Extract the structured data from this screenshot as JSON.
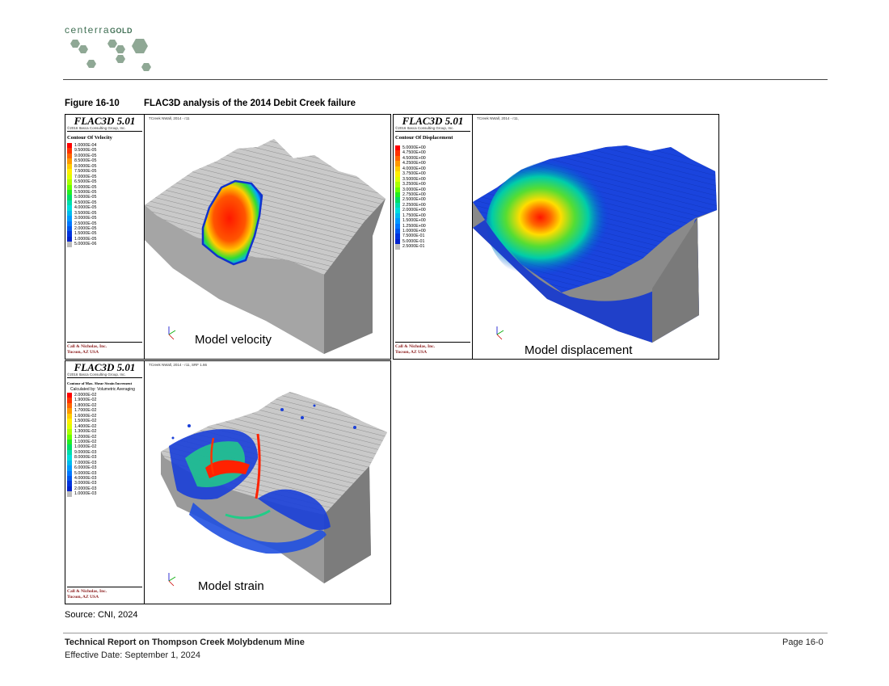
{
  "header": {
    "logo_text_main": "centerra",
    "logo_text_bold": "GOLD"
  },
  "figure": {
    "number": "Figure 16-10",
    "title": "FLAC3D analysis of the 2014 Debit Creek failure"
  },
  "panels": {
    "velocity": {
      "software": "FLAC3D 5.01",
      "copyright": "©2016 Itasca Consulting Group, Inc.",
      "run_label": "TCreek NWall, 2014 - r11",
      "legend_title": "Contour Of Velocity",
      "legend_values": [
        "1.0000E-04",
        "9.5000E-05",
        "9.0000E-05",
        "8.5000E-05",
        "8.0000E-05",
        "7.5000E-05",
        "7.0000E-05",
        "6.5000E-05",
        "6.0000E-05",
        "5.5000E-05",
        "5.0000E-05",
        "4.5000E-05",
        "4.0000E-05",
        "3.5000E-05",
        "3.0000E-05",
        "2.5000E-05",
        "2.0000E-05",
        "1.5000E-05",
        "1.0000E-05",
        "5.0000E-06"
      ],
      "company_line1": "Call & Nicholas, Inc.",
      "company_line2": "Tucson, AZ USA",
      "caption": "Model velocity"
    },
    "displacement": {
      "software": "FLAC3D 5.01",
      "copyright": "©2016 Itasca Consulting Group, Inc.",
      "run_label": "TCreek NWall, 2014 - r11,",
      "legend_title": "Contour Of Displacement",
      "legend_values": [
        "5.0000E+00",
        "4.7500E+00",
        "4.5000E+00",
        "4.2500E+00",
        "4.0000E+00",
        "3.7500E+00",
        "3.5000E+00",
        "3.2500E+00",
        "3.0000E+00",
        "2.7500E+00",
        "2.5000E+00",
        "2.2500E+00",
        "2.0000E+00",
        "1.7500E+00",
        "1.5000E+00",
        "1.2500E+00",
        "1.0000E+00",
        "7.5000E-01",
        "5.0000E-01",
        "2.5000E-01"
      ],
      "company_line1": "Call & Nicholas, Inc.",
      "company_line2": "Tucson, AZ USA",
      "caption": "Model displacement"
    },
    "strain": {
      "software": "FLAC3D 5.01",
      "copyright": "©2016 Itasca Consulting Group, Inc.",
      "run_label": "TCreek NWall, 2014 - r11, SRF 1.66",
      "legend_title": "Contour of Max. Shear Strain Increment",
      "legend_subtitle": "Calculated by: Volumetric Averaging",
      "legend_values": [
        "2.0000E-02",
        "1.9000E-02",
        "1.8000E-02",
        "1.7000E-02",
        "1.6000E-02",
        "1.5000E-02",
        "1.4000E-02",
        "1.3000E-02",
        "1.2000E-02",
        "1.1000E-02",
        "1.0000E-02",
        "9.0000E-03",
        "8.0000E-03",
        "7.0000E-03",
        "6.0000E-03",
        "5.0000E-03",
        "4.0000E-03",
        "3.0000E-03",
        "2.0000E-03",
        "1.0000E-03"
      ],
      "company_line1": "Call & Nicholas, Inc.",
      "company_line2": "Tucson, AZ USA",
      "caption": "Model strain"
    }
  },
  "legend_colors": [
    "#ff0000",
    "#ff3300",
    "#ff6600",
    "#ff9900",
    "#ffcc00",
    "#ffee00",
    "#ddff00",
    "#aaff00",
    "#66ff00",
    "#22ee22",
    "#00dd66",
    "#00ddaa",
    "#00dddd",
    "#00bbee",
    "#0099ff",
    "#0077ff",
    "#0055ee",
    "#0033dd",
    "#0022cc",
    "#bbbbbb"
  ],
  "source": "Source: CNI, 2024",
  "footer": {
    "title": "Technical Report on Thompson Creek Molybdenum Mine",
    "effective_date": "Effective Date: September 1, 2024",
    "page": "Page 16-0"
  }
}
